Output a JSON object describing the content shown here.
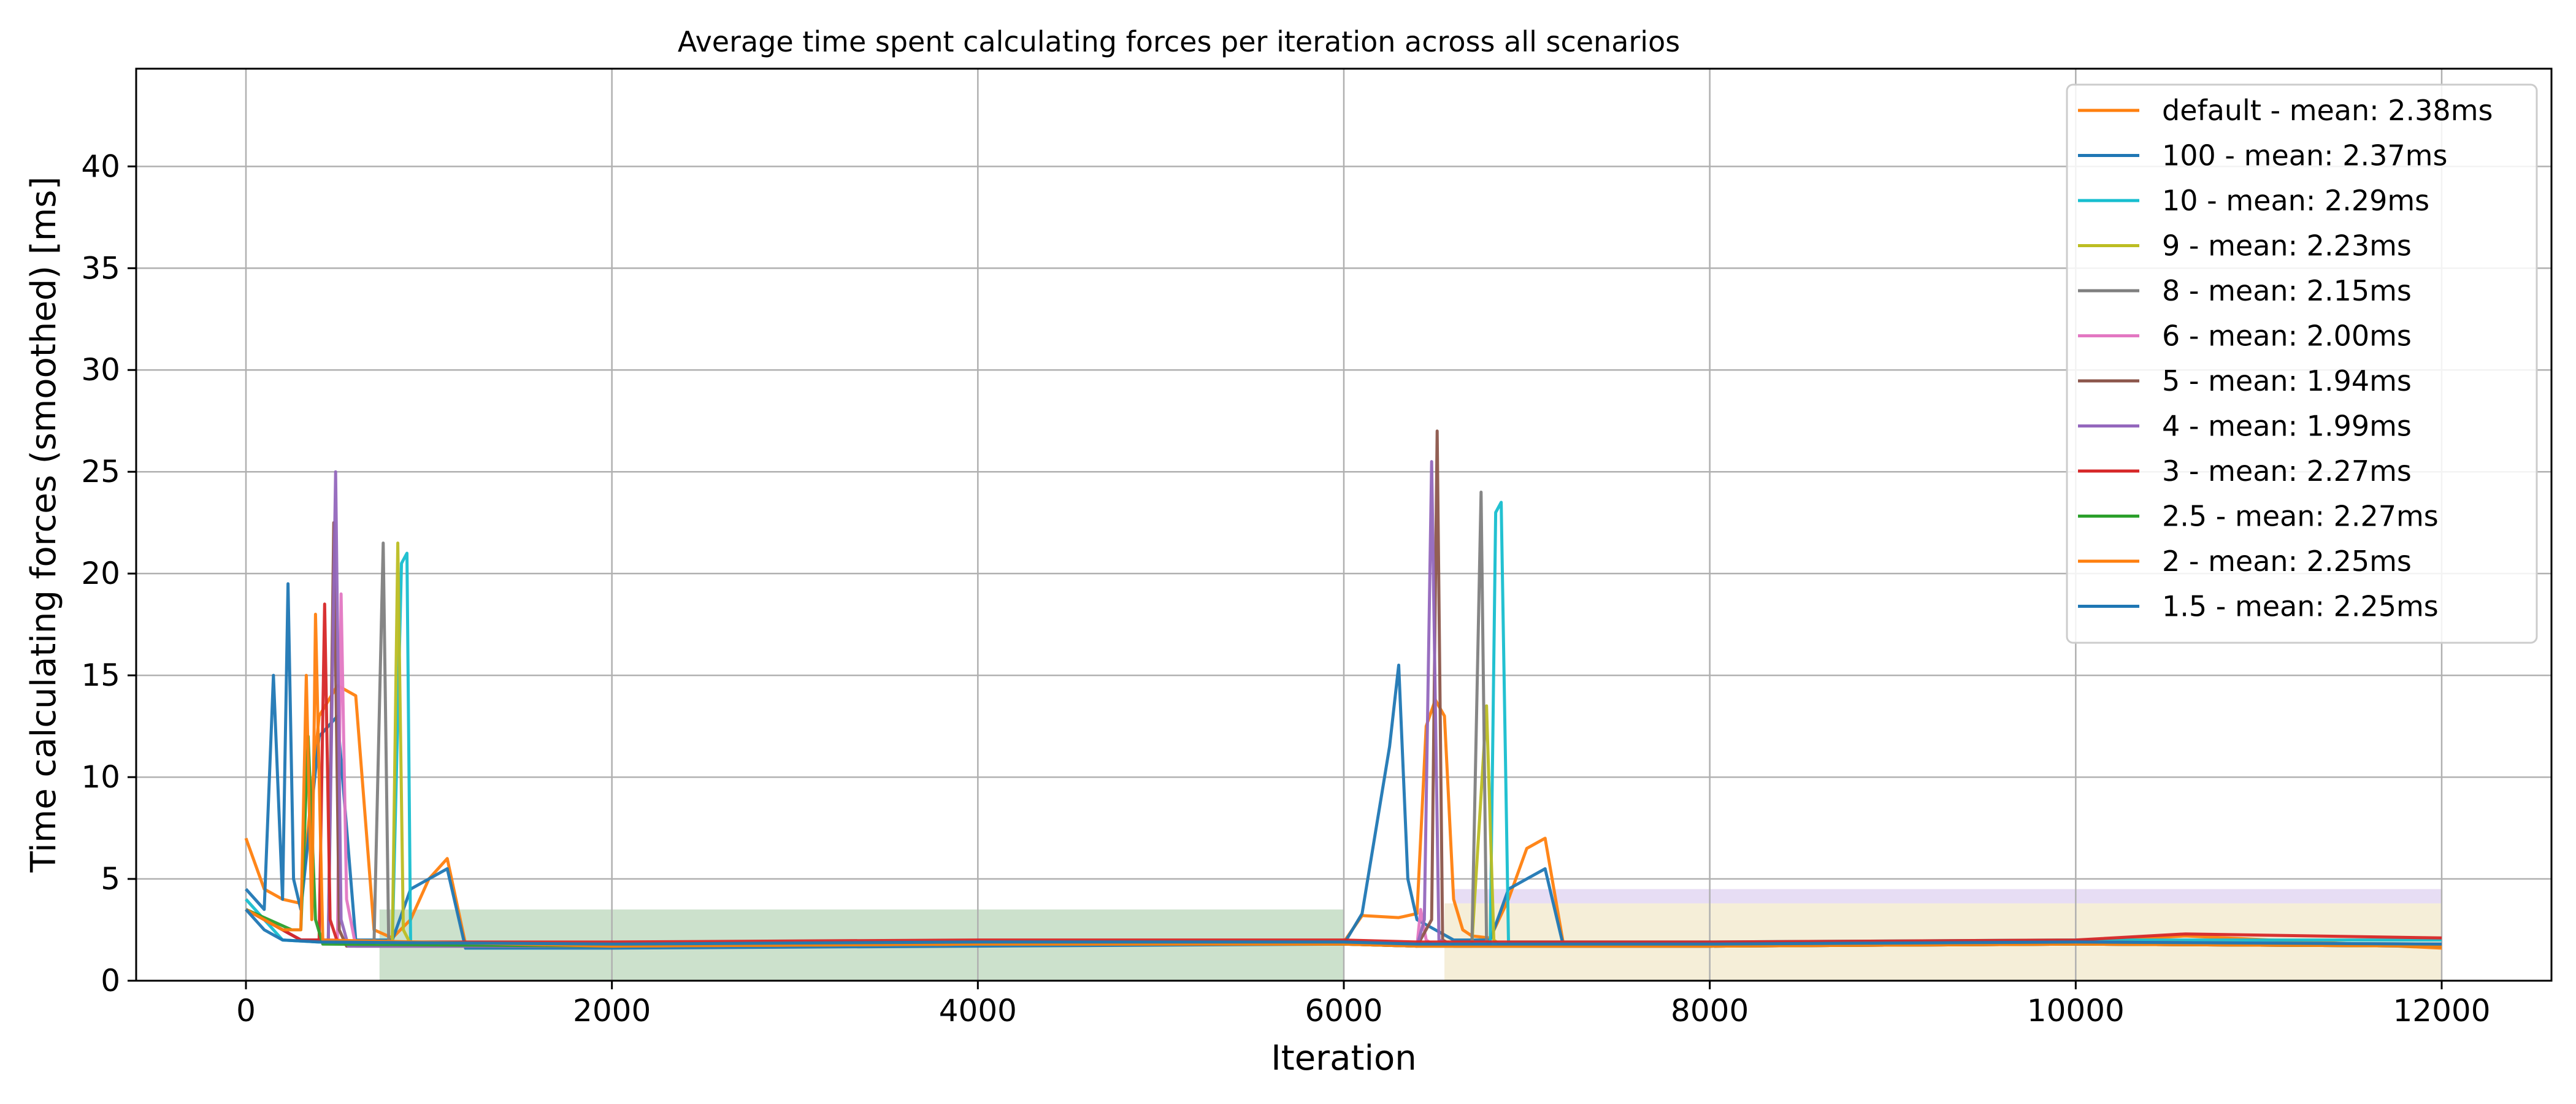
{
  "chart_data": {
    "type": "line",
    "title": "Average time spent calculating forces per iteration across all scenarios",
    "xlabel": "Iteration",
    "ylabel": "Time calculating forces (smoothed) [ms]",
    "xlim": [
      -600,
      12600
    ],
    "ylim": [
      0,
      44.8
    ],
    "xticks": [
      0,
      2000,
      4000,
      6000,
      8000,
      10000,
      12000
    ],
    "yticks": [
      0,
      5,
      10,
      15,
      20,
      25,
      30,
      35,
      40
    ],
    "grid": true,
    "legend_position": "top-right",
    "series": [
      {
        "name": "default - mean: 2.38ms",
        "color": "#ff7f0e",
        "x": [
          0,
          100,
          200,
          300,
          400,
          500,
          600,
          700,
          800,
          900,
          1000,
          1100,
          1200,
          2000,
          4000,
          6000,
          6100,
          6300,
          6400,
          6450,
          6500,
          6550,
          6600,
          6650,
          6700,
          6800,
          6900,
          7000,
          7100,
          7200,
          8000,
          10000,
          10600,
          12000
        ],
        "y": [
          7.0,
          4.5,
          4.0,
          3.8,
          13.0,
          14.5,
          14.0,
          2.5,
          2.1,
          3.0,
          5.0,
          6.0,
          1.8,
          1.7,
          1.8,
          1.9,
          3.2,
          3.1,
          3.3,
          12.5,
          13.8,
          13.0,
          4.0,
          2.5,
          2.2,
          2.1,
          4.0,
          6.5,
          7.0,
          1.8,
          1.8,
          1.9,
          2.2,
          1.6
        ]
      },
      {
        "name": "100 - mean: 2.37ms",
        "color": "#1f77b4",
        "x": [
          0,
          100,
          150,
          200,
          230,
          260,
          300,
          400,
          500,
          600,
          800,
          900,
          1000,
          1100,
          1200,
          2000,
          4000,
          6000,
          6100,
          6250,
          6300,
          6350,
          6400,
          6500,
          6600,
          6800,
          6900,
          7000,
          7100,
          7200,
          8000,
          10000,
          12000
        ],
        "y": [
          4.5,
          3.5,
          15.0,
          4.0,
          19.5,
          5.0,
          3.5,
          12.0,
          13.0,
          2.0,
          2.0,
          4.5,
          5.0,
          5.5,
          1.6,
          1.6,
          1.7,
          1.8,
          3.3,
          11.5,
          15.5,
          5.0,
          3.0,
          2.5,
          2.0,
          2.0,
          4.5,
          5.0,
          5.5,
          1.7,
          1.7,
          1.8,
          1.7
        ]
      },
      {
        "name": "10 - mean: 2.29ms",
        "color": "#17becf",
        "x": [
          0,
          200,
          400,
          800,
          850,
          880,
          900,
          1000,
          2000,
          4000,
          6000,
          6400,
          6800,
          6830,
          6860,
          6900,
          8000,
          10000,
          12000
        ],
        "y": [
          4.0,
          2.0,
          1.9,
          1.9,
          20.5,
          21.0,
          1.8,
          1.8,
          1.8,
          1.9,
          1.9,
          1.8,
          1.8,
          23.0,
          23.5,
          1.9,
          1.9,
          2.0,
          2.0
        ]
      },
      {
        "name": "9 - mean: 2.23ms",
        "color": "#bcbd22",
        "x": [
          0,
          300,
          600,
          800,
          830,
          860,
          900,
          2000,
          4000,
          6000,
          6400,
          6700,
          6780,
          6820,
          6850,
          8000,
          10000,
          12000
        ],
        "y": [
          3.5,
          2.0,
          1.9,
          1.9,
          21.5,
          2.5,
          1.8,
          1.8,
          1.9,
          1.9,
          1.8,
          1.8,
          13.5,
          2.0,
          1.8,
          1.8,
          1.9,
          1.8
        ]
      },
      {
        "name": "8 - mean: 2.15ms",
        "color": "#7f7f7f",
        "x": [
          0,
          300,
          600,
          700,
          750,
          780,
          800,
          2000,
          4000,
          6000,
          6400,
          6700,
          6750,
          6780,
          6800,
          8000,
          10000,
          12000
        ],
        "y": [
          3.5,
          2.0,
          1.8,
          1.8,
          21.5,
          2.0,
          1.8,
          1.7,
          1.8,
          1.8,
          1.7,
          1.7,
          24.0,
          2.0,
          1.7,
          1.7,
          1.8,
          1.7
        ]
      },
      {
        "name": "6 - mean: 2.00ms",
        "color": "#e377c2",
        "x": [
          0,
          300,
          500,
          520,
          550,
          600,
          2000,
          4000,
          6000,
          6400,
          6420,
          6450,
          6500,
          6550,
          6600,
          8000,
          10000,
          12000
        ],
        "y": [
          3.5,
          2.0,
          2.0,
          19.0,
          4.0,
          1.7,
          1.7,
          1.8,
          1.8,
          1.7,
          3.5,
          2.0,
          1.7,
          1.7,
          1.7,
          1.7,
          1.8,
          1.7
        ]
      },
      {
        "name": "5 - mean: 1.94ms",
        "color": "#8c564b",
        "x": [
          0,
          300,
          450,
          480,
          510,
          550,
          2000,
          4000,
          6000,
          6400,
          6480,
          6510,
          6540,
          6600,
          8000,
          10000,
          12000
        ],
        "y": [
          3.5,
          2.0,
          2.0,
          22.5,
          2.5,
          1.7,
          1.7,
          1.8,
          1.8,
          1.7,
          3.0,
          27.0,
          2.0,
          1.7,
          1.7,
          1.8,
          1.7
        ]
      },
      {
        "name": "4 - mean: 1.99ms",
        "color": "#9467bd",
        "x": [
          0,
          300,
          450,
          490,
          520,
          560,
          2000,
          4000,
          6000,
          6400,
          6440,
          6480,
          6520,
          6600,
          8000,
          10000,
          12000
        ],
        "y": [
          3.5,
          2.0,
          2.0,
          25.0,
          3.0,
          1.7,
          1.7,
          1.8,
          1.8,
          1.7,
          3.0,
          25.5,
          2.0,
          1.7,
          1.7,
          1.9,
          1.8
        ]
      },
      {
        "name": "3 - mean: 2.27ms",
        "color": "#d62728",
        "x": [
          0,
          300,
          400,
          430,
          460,
          500,
          2000,
          4000,
          6000,
          6400,
          8000,
          10000,
          10600,
          12000
        ],
        "y": [
          3.5,
          2.0,
          2.0,
          18.5,
          3.0,
          1.9,
          1.9,
          2.0,
          2.0,
          1.9,
          1.9,
          2.0,
          2.3,
          2.1
        ]
      },
      {
        "name": "2.5 - mean: 2.27ms",
        "color": "#2ca02c",
        "x": [
          0,
          250,
          300,
          340,
          380,
          420,
          2000,
          4000,
          6000,
          6400,
          8000,
          10000,
          12000
        ],
        "y": [
          3.5,
          2.5,
          2.5,
          12.0,
          3.0,
          1.8,
          1.7,
          1.8,
          1.8,
          1.7,
          1.7,
          1.8,
          1.7
        ]
      },
      {
        "name": "2 - mean: 2.25ms",
        "color": "#ff7f0e",
        "x": [
          0,
          200,
          300,
          330,
          360,
          380,
          420,
          2000,
          4000,
          6000,
          6400,
          8000,
          10000,
          12000
        ],
        "y": [
          3.5,
          2.5,
          2.5,
          15.0,
          3.0,
          18.0,
          2.0,
          1.7,
          1.8,
          1.8,
          1.7,
          1.7,
          1.8,
          1.7
        ]
      },
      {
        "name": "1.5 - mean: 2.25ms",
        "color": "#1f77b4",
        "x": [
          0,
          100,
          200,
          400,
          2000,
          4000,
          6000,
          6400,
          8000,
          10000,
          12000
        ],
        "y": [
          3.5,
          2.5,
          2.0,
          1.9,
          1.8,
          1.9,
          1.9,
          1.8,
          1.8,
          1.9,
          1.8
        ]
      }
    ],
    "bands": [
      {
        "color": "#8fbc8f",
        "x": [
          730,
          6000
        ],
        "y": [
          0,
          3.5
        ]
      },
      {
        "color": "#e8d9a8",
        "x": [
          6550,
          12000
        ],
        "y": [
          0,
          3.8
        ]
      },
      {
        "color": "#c9b3e6",
        "x": [
          6600,
          12000
        ],
        "y": [
          3.8,
          4.5
        ]
      }
    ]
  }
}
